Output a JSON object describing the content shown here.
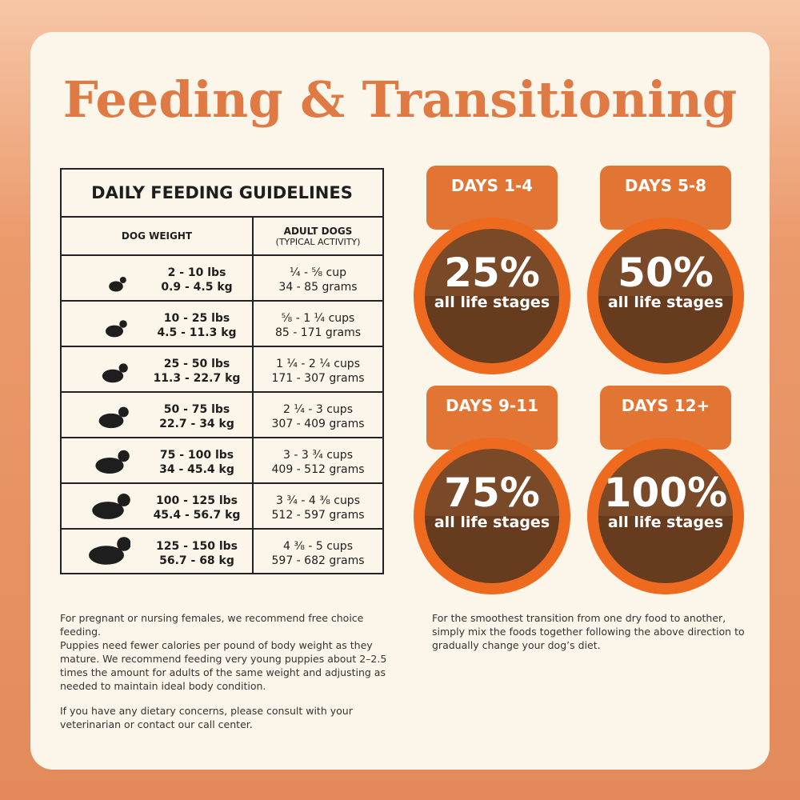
{
  "title": "Feeding & Transitioning",
  "table": {
    "title": "DAILY FEEDING GUIDELINES",
    "header": {
      "weight": "DOG WEIGHT",
      "adult": "ADULT DOGS",
      "activity": "(TYPICAL ACTIVITY)"
    },
    "rows": [
      {
        "lbs": "2 - 10 lbs",
        "kg": "0.9 - 4.5 kg",
        "cups": "¼ - ⅝ cup",
        "grams": "34 - 85 grams"
      },
      {
        "lbs": "10 - 25 lbs",
        "kg": "4.5 - 11.3 kg",
        "cups": "⅝ - 1 ¼ cups",
        "grams": "85 - 171 grams"
      },
      {
        "lbs": "25 - 50 lbs",
        "kg": "11.3 - 22.7 kg",
        "cups": "1 ¼ - 2 ¼ cups",
        "grams": "171 - 307 grams"
      },
      {
        "lbs": "50 - 75 lbs",
        "kg": "22.7 - 34 kg",
        "cups": "2 ¼ - 3 cups",
        "grams": "307 - 409 grams"
      },
      {
        "lbs": "75 - 100 lbs",
        "kg": "34 - 45.4 kg",
        "cups": "3 - 3 ¾ cups",
        "grams": "409 - 512 grams"
      },
      {
        "lbs": "100 - 125 lbs",
        "kg": "45.4 - 56.7 kg",
        "cups": "3 ¾ - 4 ⅜ cups",
        "grams": "512 - 597 grams"
      },
      {
        "lbs": "125 - 150 lbs",
        "kg": "56.7 - 68 kg",
        "cups": "4 ⅜ - 5 cups",
        "grams": "597 - 682 grams"
      }
    ]
  },
  "transition": [
    {
      "days": "DAYS 1-4",
      "percent": "25%",
      "label": "all life stages"
    },
    {
      "days": "DAYS 5-8",
      "percent": "50%",
      "label": "all life stages"
    },
    {
      "days": "DAYS 9-11",
      "percent": "75%",
      "label": "all life stages"
    },
    {
      "days": "DAYS 12+",
      "percent": "100%",
      "label": "all life stages"
    }
  ],
  "notes_left": [
    "For pregnant or nursing females, we recommend free choice feeding.",
    "Puppies need fewer calories per pound of body weight as they mature. We recommend feeding very young puppies about 2–2.5 times the amount for adults of the same weight and adjusting as needed to maintain ideal body condition.",
    "If you have any dietary concerns, please consult with your veterinarian or contact our call center."
  ],
  "note_right": "For the smoothest transition from one dry food to another, simply mix the foods together following the above direction to gradually change your dog’s diet."
}
